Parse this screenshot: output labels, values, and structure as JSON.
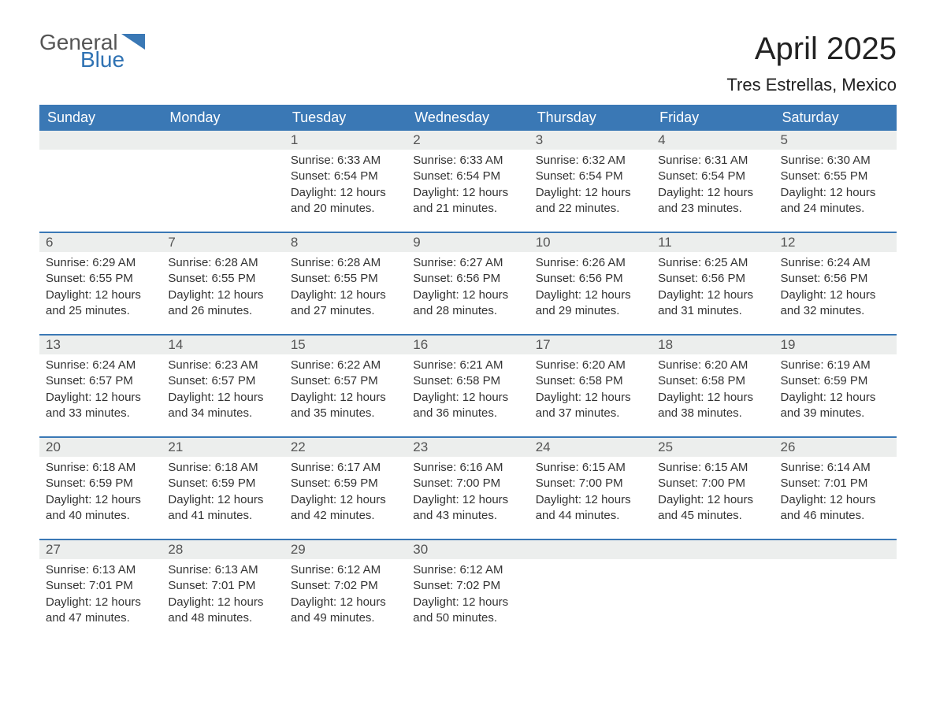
{
  "logo": {
    "word1": "General",
    "word2": "Blue"
  },
  "title": "April 2025",
  "subtitle": "Tres Estrellas, Mexico",
  "colors": {
    "header_bg": "#3a78b5",
    "header_text": "#ffffff",
    "daynum_bg": "#eceeed",
    "text": "#333333",
    "logo_gray": "#555555",
    "logo_blue": "#2f72b3",
    "week_divider": "#3a78b5"
  },
  "weekdays": [
    "Sunday",
    "Monday",
    "Tuesday",
    "Wednesday",
    "Thursday",
    "Friday",
    "Saturday"
  ],
  "weeks": [
    [
      {
        "empty": true
      },
      {
        "empty": true
      },
      {
        "num": "1",
        "sunrise": "Sunrise: 6:33 AM",
        "sunset": "Sunset: 6:54 PM",
        "dl1": "Daylight: 12 hours",
        "dl2": "and 20 minutes."
      },
      {
        "num": "2",
        "sunrise": "Sunrise: 6:33 AM",
        "sunset": "Sunset: 6:54 PM",
        "dl1": "Daylight: 12 hours",
        "dl2": "and 21 minutes."
      },
      {
        "num": "3",
        "sunrise": "Sunrise: 6:32 AM",
        "sunset": "Sunset: 6:54 PM",
        "dl1": "Daylight: 12 hours",
        "dl2": "and 22 minutes."
      },
      {
        "num": "4",
        "sunrise": "Sunrise: 6:31 AM",
        "sunset": "Sunset: 6:54 PM",
        "dl1": "Daylight: 12 hours",
        "dl2": "and 23 minutes."
      },
      {
        "num": "5",
        "sunrise": "Sunrise: 6:30 AM",
        "sunset": "Sunset: 6:55 PM",
        "dl1": "Daylight: 12 hours",
        "dl2": "and 24 minutes."
      }
    ],
    [
      {
        "num": "6",
        "sunrise": "Sunrise: 6:29 AM",
        "sunset": "Sunset: 6:55 PM",
        "dl1": "Daylight: 12 hours",
        "dl2": "and 25 minutes."
      },
      {
        "num": "7",
        "sunrise": "Sunrise: 6:28 AM",
        "sunset": "Sunset: 6:55 PM",
        "dl1": "Daylight: 12 hours",
        "dl2": "and 26 minutes."
      },
      {
        "num": "8",
        "sunrise": "Sunrise: 6:28 AM",
        "sunset": "Sunset: 6:55 PM",
        "dl1": "Daylight: 12 hours",
        "dl2": "and 27 minutes."
      },
      {
        "num": "9",
        "sunrise": "Sunrise: 6:27 AM",
        "sunset": "Sunset: 6:56 PM",
        "dl1": "Daylight: 12 hours",
        "dl2": "and 28 minutes."
      },
      {
        "num": "10",
        "sunrise": "Sunrise: 6:26 AM",
        "sunset": "Sunset: 6:56 PM",
        "dl1": "Daylight: 12 hours",
        "dl2": "and 29 minutes."
      },
      {
        "num": "11",
        "sunrise": "Sunrise: 6:25 AM",
        "sunset": "Sunset: 6:56 PM",
        "dl1": "Daylight: 12 hours",
        "dl2": "and 31 minutes."
      },
      {
        "num": "12",
        "sunrise": "Sunrise: 6:24 AM",
        "sunset": "Sunset: 6:56 PM",
        "dl1": "Daylight: 12 hours",
        "dl2": "and 32 minutes."
      }
    ],
    [
      {
        "num": "13",
        "sunrise": "Sunrise: 6:24 AM",
        "sunset": "Sunset: 6:57 PM",
        "dl1": "Daylight: 12 hours",
        "dl2": "and 33 minutes."
      },
      {
        "num": "14",
        "sunrise": "Sunrise: 6:23 AM",
        "sunset": "Sunset: 6:57 PM",
        "dl1": "Daylight: 12 hours",
        "dl2": "and 34 minutes."
      },
      {
        "num": "15",
        "sunrise": "Sunrise: 6:22 AM",
        "sunset": "Sunset: 6:57 PM",
        "dl1": "Daylight: 12 hours",
        "dl2": "and 35 minutes."
      },
      {
        "num": "16",
        "sunrise": "Sunrise: 6:21 AM",
        "sunset": "Sunset: 6:58 PM",
        "dl1": "Daylight: 12 hours",
        "dl2": "and 36 minutes."
      },
      {
        "num": "17",
        "sunrise": "Sunrise: 6:20 AM",
        "sunset": "Sunset: 6:58 PM",
        "dl1": "Daylight: 12 hours",
        "dl2": "and 37 minutes."
      },
      {
        "num": "18",
        "sunrise": "Sunrise: 6:20 AM",
        "sunset": "Sunset: 6:58 PM",
        "dl1": "Daylight: 12 hours",
        "dl2": "and 38 minutes."
      },
      {
        "num": "19",
        "sunrise": "Sunrise: 6:19 AM",
        "sunset": "Sunset: 6:59 PM",
        "dl1": "Daylight: 12 hours",
        "dl2": "and 39 minutes."
      }
    ],
    [
      {
        "num": "20",
        "sunrise": "Sunrise: 6:18 AM",
        "sunset": "Sunset: 6:59 PM",
        "dl1": "Daylight: 12 hours",
        "dl2": "and 40 minutes."
      },
      {
        "num": "21",
        "sunrise": "Sunrise: 6:18 AM",
        "sunset": "Sunset: 6:59 PM",
        "dl1": "Daylight: 12 hours",
        "dl2": "and 41 minutes."
      },
      {
        "num": "22",
        "sunrise": "Sunrise: 6:17 AM",
        "sunset": "Sunset: 6:59 PM",
        "dl1": "Daylight: 12 hours",
        "dl2": "and 42 minutes."
      },
      {
        "num": "23",
        "sunrise": "Sunrise: 6:16 AM",
        "sunset": "Sunset: 7:00 PM",
        "dl1": "Daylight: 12 hours",
        "dl2": "and 43 minutes."
      },
      {
        "num": "24",
        "sunrise": "Sunrise: 6:15 AM",
        "sunset": "Sunset: 7:00 PM",
        "dl1": "Daylight: 12 hours",
        "dl2": "and 44 minutes."
      },
      {
        "num": "25",
        "sunrise": "Sunrise: 6:15 AM",
        "sunset": "Sunset: 7:00 PM",
        "dl1": "Daylight: 12 hours",
        "dl2": "and 45 minutes."
      },
      {
        "num": "26",
        "sunrise": "Sunrise: 6:14 AM",
        "sunset": "Sunset: 7:01 PM",
        "dl1": "Daylight: 12 hours",
        "dl2": "and 46 minutes."
      }
    ],
    [
      {
        "num": "27",
        "sunrise": "Sunrise: 6:13 AM",
        "sunset": "Sunset: 7:01 PM",
        "dl1": "Daylight: 12 hours",
        "dl2": "and 47 minutes."
      },
      {
        "num": "28",
        "sunrise": "Sunrise: 6:13 AM",
        "sunset": "Sunset: 7:01 PM",
        "dl1": "Daylight: 12 hours",
        "dl2": "and 48 minutes."
      },
      {
        "num": "29",
        "sunrise": "Sunrise: 6:12 AM",
        "sunset": "Sunset: 7:02 PM",
        "dl1": "Daylight: 12 hours",
        "dl2": "and 49 minutes."
      },
      {
        "num": "30",
        "sunrise": "Sunrise: 6:12 AM",
        "sunset": "Sunset: 7:02 PM",
        "dl1": "Daylight: 12 hours",
        "dl2": "and 50 minutes."
      },
      {
        "empty": true
      },
      {
        "empty": true
      },
      {
        "empty": true
      }
    ]
  ]
}
